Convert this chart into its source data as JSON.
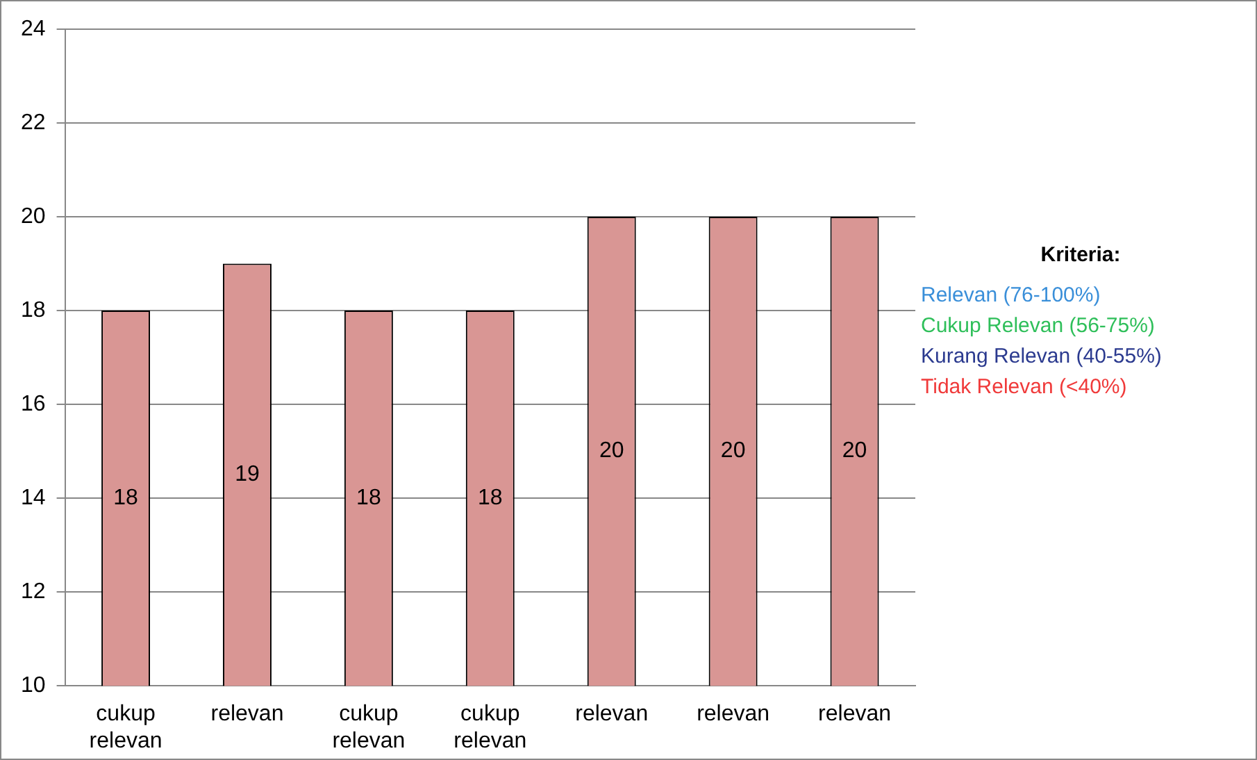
{
  "chart_data": {
    "type": "bar",
    "categories": [
      "cukup relevan",
      "relevan",
      "cukup relevan",
      "cukup relevan",
      "relevan",
      "relevan",
      "relevan"
    ],
    "values": [
      18,
      19,
      18,
      18,
      20,
      20,
      20
    ],
    "color": "#d99694",
    "ylim": [
      10,
      24
    ],
    "yticks": [
      10,
      12,
      14,
      16,
      18,
      20,
      22,
      24
    ],
    "grid": "y",
    "data_labels": true,
    "legend": false,
    "legend_title": "Kriteria:",
    "annotations": [
      "Relevan  (76-100%)",
      "Cukup Relevan  (56-75%)",
      "Kurang Relevan   (40-55%)",
      "Tidak Relevan  (<40%)"
    ]
  }
}
